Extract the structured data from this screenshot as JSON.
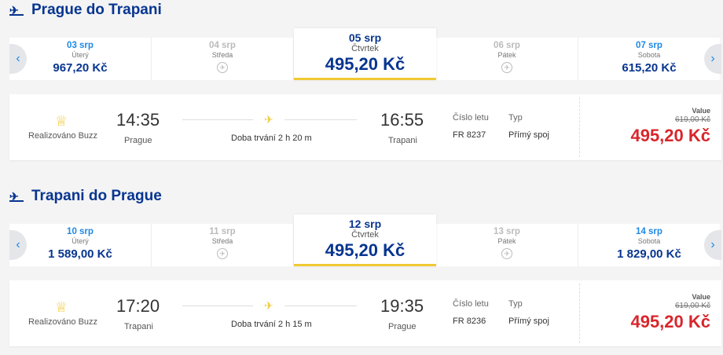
{
  "flights": [
    {
      "title": "Prague do Trapani",
      "icon": "takeoff-icon",
      "dates": [
        {
          "date": "03 srp",
          "day": "Úterý",
          "price": "967,20 Kč"
        },
        {
          "date": "04 srp",
          "day": "Středa",
          "price": null
        },
        {
          "date": "05 srp",
          "day": "Čtvrtek",
          "price": "495,20 Kč",
          "selected": true
        },
        {
          "date": "06 srp",
          "day": "Pátek",
          "price": null
        },
        {
          "date": "07 srp",
          "day": "Sobota",
          "price": "615,20 Kč"
        }
      ],
      "operator": "Realizováno Buzz",
      "dep_time": "14:35",
      "dep_city": "Prague",
      "arr_time": "16:55",
      "arr_city": "Trapani",
      "duration": "Doba trvání 2 h 20 m",
      "flight_no_label": "Číslo letu",
      "flight_no": "FR 8237",
      "type_label": "Typ",
      "type": "Přímý spoj",
      "fare_label": "Value",
      "old_price": "619,00 Kč",
      "price": "495,20 Kč"
    },
    {
      "title": "Trapani do Prague",
      "icon": "landing-icon",
      "dates": [
        {
          "date": "10 srp",
          "day": "Úterý",
          "price": "1 589,00 Kč"
        },
        {
          "date": "11 srp",
          "day": "Středa",
          "price": null
        },
        {
          "date": "12 srp",
          "day": "Čtvrtek",
          "price": "495,20 Kč",
          "selected": true
        },
        {
          "date": "13 srp",
          "day": "Pátek",
          "price": null
        },
        {
          "date": "14 srp",
          "day": "Sobota",
          "price": "1 829,00 Kč"
        }
      ],
      "operator": "Realizováno Buzz",
      "dep_time": "17:20",
      "dep_city": "Trapani",
      "arr_time": "19:35",
      "arr_city": "Prague",
      "duration": "Doba trvání 2 h 15 m",
      "flight_no_label": "Číslo letu",
      "flight_no": "FR 8236",
      "type_label": "Typ",
      "type": "Přímý spoj",
      "fare_label": "Value",
      "old_price": "619,00 Kč",
      "price": "495,20 Kč"
    }
  ],
  "colors": {
    "brand": "#073590",
    "accent": "#f1c933",
    "price": "#d8262c",
    "link": "#1e88e5"
  }
}
